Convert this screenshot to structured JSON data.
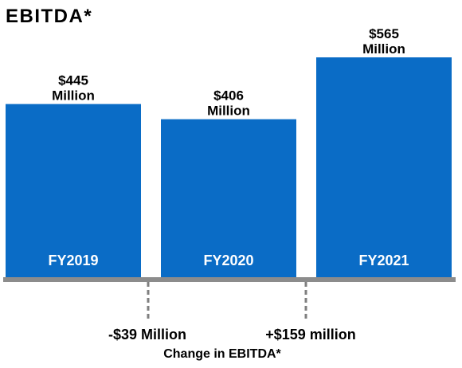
{
  "colors": {
    "bar": "#0a6cc6",
    "axis": "#8c8c8c",
    "connector": "#7f7f7f"
  },
  "chart_data": {
    "type": "bar",
    "title": "EBITDA*",
    "categories": [
      "FY2019",
      "FY2020",
      "FY2021"
    ],
    "values": [
      445,
      406,
      565
    ],
    "value_labels": [
      {
        "amount": "$445",
        "unit": "Million"
      },
      {
        "amount": "$406",
        "unit": "Million"
      },
      {
        "amount": "$565",
        "unit": "Million"
      }
    ],
    "changes": [
      {
        "between": [
          "FY2019",
          "FY2020"
        ],
        "value": -39,
        "label": "-$39 Million"
      },
      {
        "between": [
          "FY2020",
          "FY2021"
        ],
        "value": 159,
        "label": "+$159 million"
      }
    ],
    "footer": "Change in EBITDA*",
    "ylim": [
      0,
      565
    ],
    "grid": false,
    "legend": "none"
  }
}
